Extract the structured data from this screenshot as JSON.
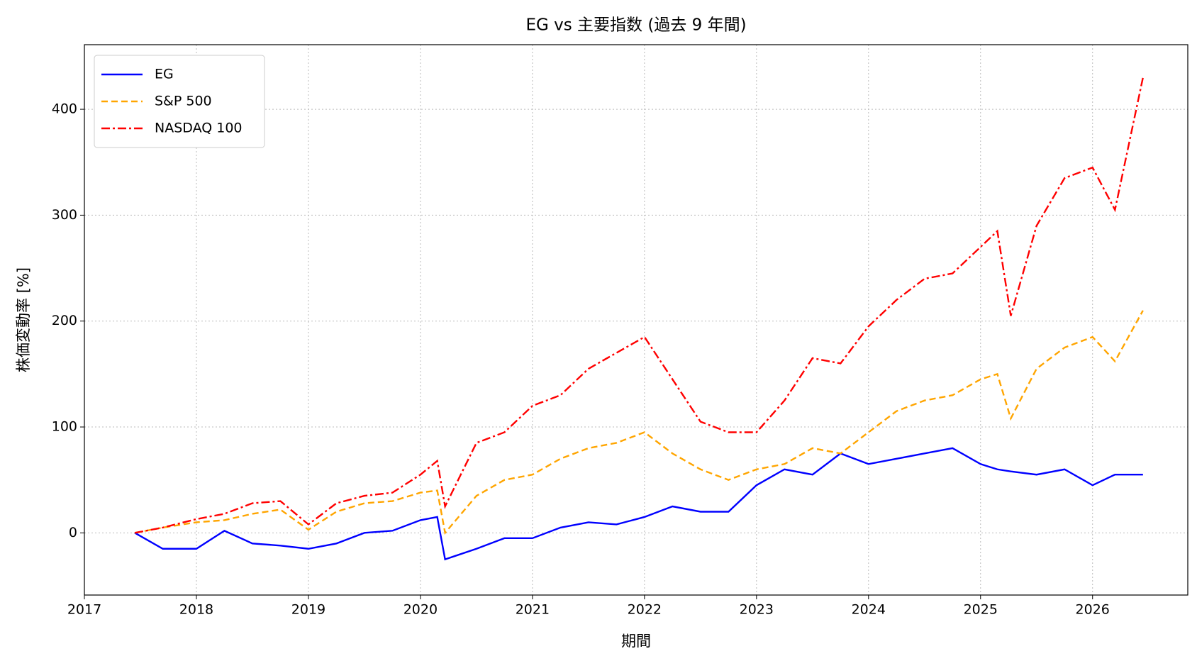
{
  "chart_data": {
    "type": "line",
    "title": "EG vs 主要指数 (過去 9 年間)",
    "x_label": "期間",
    "y_label": "株価変動率 [%]",
    "x": [
      2017.45,
      2017.7,
      2018.0,
      2018.25,
      2018.5,
      2018.75,
      2019.0,
      2019.25,
      2019.5,
      2019.75,
      2020.0,
      2020.15,
      2020.22,
      2020.5,
      2020.75,
      2021.0,
      2021.25,
      2021.5,
      2021.75,
      2022.0,
      2022.25,
      2022.5,
      2022.75,
      2023.0,
      2023.25,
      2023.5,
      2023.75,
      2024.0,
      2024.25,
      2024.5,
      2024.75,
      2025.0,
      2025.15,
      2025.27,
      2025.5,
      2025.75,
      2026.0,
      2026.2,
      2026.45
    ],
    "series": [
      {
        "name": "EG",
        "color": "#0000ff",
        "linestyle": "solid",
        "values": [
          0,
          -15,
          -15,
          2,
          -10,
          -12,
          -15,
          -10,
          0,
          2,
          12,
          15,
          -25,
          -15,
          -5,
          -5,
          5,
          10,
          8,
          15,
          25,
          20,
          20,
          45,
          60,
          55,
          75,
          65,
          70,
          75,
          80,
          65,
          60,
          58,
          55,
          60,
          45,
          55,
          55
        ]
      },
      {
        "name": "S&P 500",
        "color": "#ffa500",
        "linestyle": "dashed",
        "values": [
          0,
          5,
          10,
          12,
          18,
          22,
          3,
          20,
          28,
          30,
          38,
          40,
          0,
          35,
          50,
          55,
          70,
          80,
          85,
          95,
          75,
          60,
          50,
          60,
          65,
          80,
          75,
          95,
          115,
          125,
          130,
          145,
          150,
          108,
          155,
          175,
          185,
          162,
          210
        ]
      },
      {
        "name": "NASDAQ 100",
        "color": "#ff0000",
        "linestyle": "dashdot",
        "values": [
          0,
          5,
          13,
          18,
          28,
          30,
          8,
          28,
          35,
          38,
          55,
          68,
          25,
          85,
          95,
          120,
          130,
          155,
          170,
          185,
          145,
          105,
          95,
          95,
          125,
          165,
          160,
          195,
          220,
          240,
          245,
          270,
          285,
          205,
          290,
          335,
          345,
          305,
          430
        ]
      }
    ],
    "xlim": [
      2017,
      2026.85
    ],
    "xticks": [
      2017,
      2018,
      2019,
      2020,
      2021,
      2022,
      2023,
      2024,
      2025,
      2026
    ],
    "ylim": [
      -58.7,
      461
    ],
    "yticks": [
      0,
      100,
      200,
      300,
      400
    ],
    "grid": true,
    "legend": "upper-left"
  }
}
